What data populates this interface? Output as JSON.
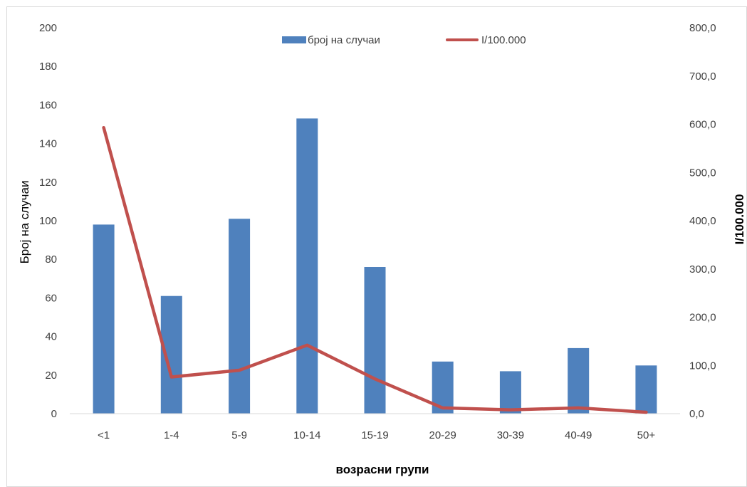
{
  "chart_data": {
    "type": "bar",
    "title": "",
    "categories": [
      "<1",
      "1-4",
      "5-9",
      "10-14",
      "15-19",
      "20-29",
      "30-39",
      "40-49",
      "50+"
    ],
    "series": [
      {
        "name": "број на случаи",
        "type": "bar",
        "axis": "left",
        "color": "#4f81bd",
        "values": [
          98,
          61,
          101,
          153,
          76,
          27,
          22,
          34,
          25
        ]
      },
      {
        "name": "I/100.000",
        "type": "line",
        "axis": "right",
        "color": "#c0504d",
        "values": [
          593.0,
          76.0,
          90.0,
          142.0,
          72.0,
          12.0,
          8.0,
          12.0,
          3.0
        ]
      }
    ],
    "xlabel": "возрасни групи",
    "ylabel": "Број на случаи",
    "y2label": "I/100.000",
    "ylim": [
      0,
      200
    ],
    "y2lim": [
      0,
      800
    ],
    "yticks": [
      "0",
      "20",
      "40",
      "60",
      "80",
      "100",
      "120",
      "140",
      "160",
      "180",
      "200"
    ],
    "y2ticks": [
      "0,0",
      "100,0",
      "200,0",
      "300,0",
      "400,0",
      "500,0",
      "600,0",
      "700,0",
      "800,0"
    ],
    "grid": false,
    "legend_position": "top"
  }
}
